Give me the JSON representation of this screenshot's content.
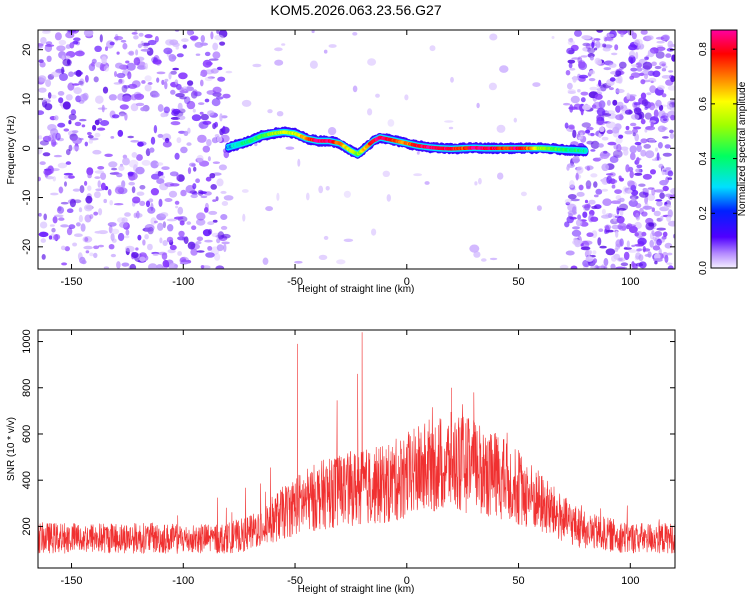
{
  "title": "KOM5.2026.063.23.56.G27",
  "colors": {
    "snr_line": "#f03030",
    "frame": "#000000",
    "noise": "#8a3cff"
  },
  "chart_data": [
    {
      "type": "heatmap",
      "name": "spectrogram",
      "xlabel": "Height of straight line (km)",
      "ylabel": "Frequency (Hz)",
      "xlim": [
        -165,
        120
      ],
      "ylim": [
        -24.5,
        24
      ],
      "xticks": [
        -150,
        -100,
        -50,
        0,
        50,
        100
      ],
      "yticks": [
        -20,
        -10,
        0,
        10,
        20
      ],
      "ridge": {
        "x": [
          -80,
          -75,
          -70,
          -65,
          -60,
          -55,
          -50,
          -45,
          -40,
          -35,
          -30,
          -25,
          -22,
          -20,
          -15,
          -12,
          -10,
          -5,
          0,
          5,
          10,
          15,
          20,
          25,
          30,
          35,
          40,
          45,
          50,
          55,
          60,
          65,
          70,
          75,
          80
        ],
        "freq": [
          0.2,
          0.8,
          1.5,
          2.5,
          3.0,
          3.3,
          3.0,
          2.0,
          1.5,
          1.5,
          1.0,
          -0.5,
          -1.2,
          -0.5,
          1.5,
          2.2,
          2.0,
          1.5,
          1.0,
          0.5,
          0.2,
          0.0,
          -0.1,
          0.0,
          0.1,
          0.0,
          0.0,
          0.0,
          0.0,
          0.0,
          0.0,
          -0.1,
          -0.3,
          -0.4,
          -0.5
        ],
        "amplitude": [
          0.25,
          0.35,
          0.4,
          0.45,
          0.5,
          0.55,
          0.55,
          0.7,
          0.85,
          0.85,
          0.7,
          0.55,
          0.45,
          0.6,
          0.8,
          0.85,
          0.8,
          0.75,
          0.7,
          0.8,
          0.85,
          0.85,
          0.8,
          0.75,
          0.85,
          0.85,
          0.8,
          0.75,
          0.85,
          0.7,
          0.5,
          0.45,
          0.4,
          0.4,
          0.35
        ]
      },
      "colorbar": {
        "label": "Normalized spectral amplitude",
        "range": [
          0,
          0.87
        ],
        "ticks": [
          "0.0",
          "0.2",
          "0.4",
          "0.6",
          "0.8"
        ]
      }
    },
    {
      "type": "line",
      "name": "snr",
      "xlabel": "Height of straight line (km)",
      "ylabel": "SNR (10 * v/v)",
      "xlim": [
        -165,
        120
      ],
      "ylim": [
        20,
        1050
      ],
      "xticks": [
        -150,
        -100,
        -50,
        0,
        50,
        100
      ],
      "yticks": [
        200,
        400,
        600,
        800,
        1000
      ],
      "envelope": {
        "x": [
          -165,
          -150,
          -120,
          -100,
          -80,
          -70,
          -60,
          -50,
          -40,
          -30,
          -20,
          -10,
          0,
          10,
          20,
          30,
          40,
          50,
          60,
          70,
          80,
          100,
          120
        ],
        "mean": [
          150,
          150,
          150,
          145,
          150,
          170,
          230,
          290,
          330,
          360,
          370,
          380,
          420,
          460,
          480,
          460,
          420,
          370,
          300,
          230,
          180,
          150,
          150
        ]
      },
      "peaks": [
        {
          "x": -49,
          "y": 990
        },
        {
          "x": -20,
          "y": 1040
        },
        {
          "x": -22,
          "y": 860
        },
        {
          "x": 20,
          "y": 800
        },
        {
          "x": 30,
          "y": 780
        }
      ]
    }
  ]
}
